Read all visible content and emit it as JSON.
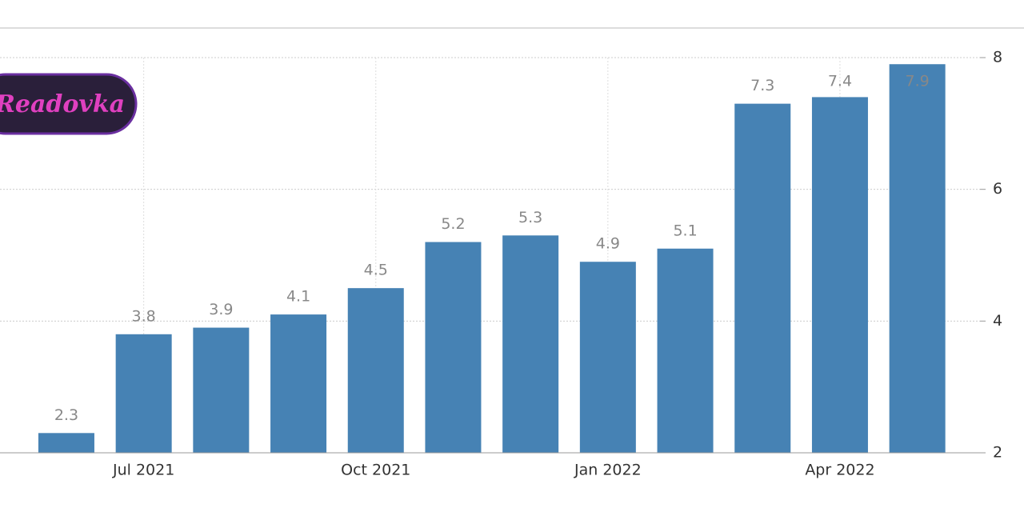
{
  "logo": "Readovka",
  "chart_data": {
    "type": "bar",
    "categories": [
      null,
      "Jul 2021",
      null,
      null,
      "Oct 2021",
      null,
      null,
      "Jan 2022",
      null,
      null,
      "Apr 2022",
      null
    ],
    "values": [
      2.3,
      3.8,
      3.9,
      4.1,
      4.5,
      5.2,
      5.3,
      4.9,
      5.1,
      7.3,
      7.4,
      7.9
    ],
    "color": "#4682b4",
    "ylim": [
      2,
      8
    ],
    "yticks": [
      2,
      4,
      6,
      8
    ],
    "grid": true
  }
}
